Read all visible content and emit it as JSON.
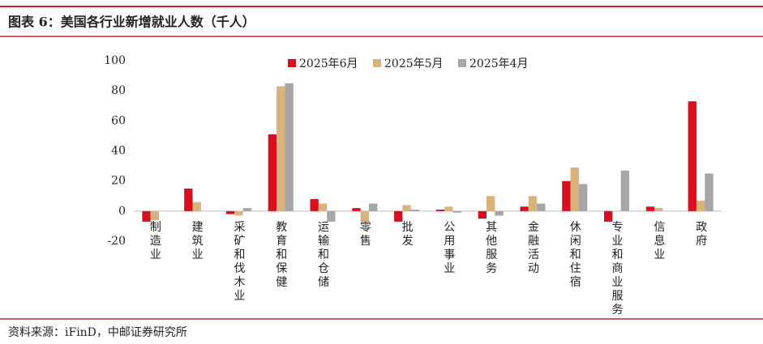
{
  "chart_data": {
    "type": "bar",
    "title": "图表 6：美国各行业新增就业人数（千人）",
    "source": "资料来源：iFinD，中邮证券研究所",
    "categories": [
      "制造业",
      "建筑业",
      "采矿和伐木业",
      "教育和保健",
      "运输和仓储",
      "零售",
      "批发",
      "公用事业",
      "其他服务",
      "金融活动",
      "休闲和住宿",
      "专业和商业服务",
      "信息业",
      "政府"
    ],
    "series": [
      {
        "name": "2025年6月",
        "color": "#d7101f",
        "values": [
          -7,
          15,
          -2,
          51,
          8,
          2,
          -7,
          1,
          -5,
          3,
          20,
          -7,
          3,
          73
        ]
      },
      {
        "name": "2025年5月",
        "color": "#d9b27c",
        "values": [
          -6,
          6,
          -3,
          83,
          5,
          -7,
          4,
          3,
          10,
          10,
          29,
          0,
          2,
          7
        ]
      },
      {
        "name": "2025年4月",
        "color": "#a6a6a6",
        "values": [
          0,
          0,
          2,
          85,
          -7,
          5,
          1,
          -1,
          -3,
          5,
          18,
          27,
          0,
          25
        ]
      }
    ],
    "ylim": [
      -20,
      100
    ],
    "yticks": [
      -20,
      0,
      20,
      40,
      60,
      80,
      100
    ],
    "grid": false,
    "legend": "top"
  }
}
